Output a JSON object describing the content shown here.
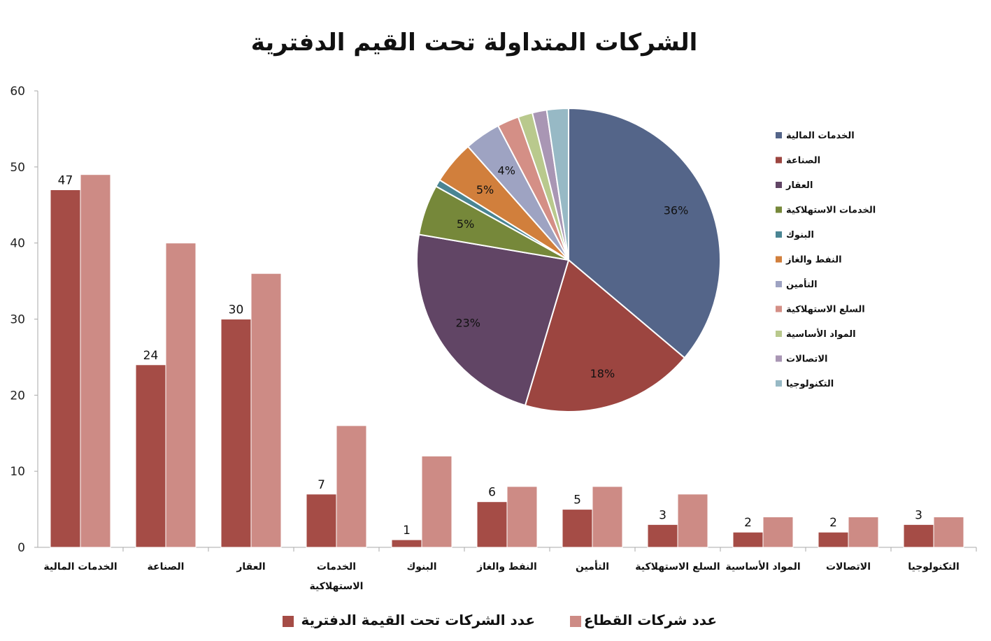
{
  "chart_data": [
    {
      "type": "bar",
      "title": "الشركات المتداولة تحت القيم الدفترية",
      "categories": [
        "الخدمات المالية",
        "الصناعة",
        "العقار",
        "الخدمات الاستهلاكية",
        "البنوك",
        "النفط والغاز",
        "التأمين",
        "السلع الاستهلاكية",
        "المواد الأساسية",
        "الاتصالات",
        "التكنولوجيا"
      ],
      "series": [
        {
          "name": "عدد الشركات تحت القيمة الدفترية",
          "color": "#a54c46",
          "values": [
            47,
            24,
            30,
            7,
            1,
            6,
            5,
            3,
            2,
            2,
            3
          ]
        },
        {
          "name": "عدد شركات القطاع",
          "color": "#cd8b85",
          "values": [
            49,
            40,
            36,
            16,
            12,
            8,
            8,
            7,
            4,
            4,
            4
          ]
        }
      ],
      "ylim": [
        0,
        60
      ],
      "yticks": [
        "0",
        "10",
        "20",
        "30",
        "40",
        "50",
        "60"
      ],
      "data_labels": [
        "47",
        "24",
        "30",
        "7",
        "1",
        "6",
        "5",
        "3",
        "2",
        "2",
        "3"
      ],
      "legend_position": "bottom"
    },
    {
      "type": "pie",
      "labels": [
        "الخدمات المالية",
        "الصناعة",
        "العقار",
        "الخدمات الاستهلاكية",
        "البنوك",
        "النفط والغاز",
        "التأمين",
        "السلع الاستهلاكية",
        "المواد الأساسية",
        "الاتصالات",
        "التكنولوجيا"
      ],
      "values": [
        47,
        24,
        30,
        7,
        1,
        6,
        5,
        3,
        2,
        2,
        3
      ],
      "colors": [
        "#546589",
        "#9c4540",
        "#614565",
        "#76883a",
        "#4a8593",
        "#d17f3c",
        "#9ea3c2",
        "#d48f86",
        "#b9c98d",
        "#a996b4",
        "#97b9c5"
      ],
      "slice_labels": [
        "36%",
        "18%",
        "23%",
        "5%",
        "",
        "5%",
        "4%",
        "",
        "",
        "",
        ""
      ],
      "legend_position": "right"
    }
  ]
}
